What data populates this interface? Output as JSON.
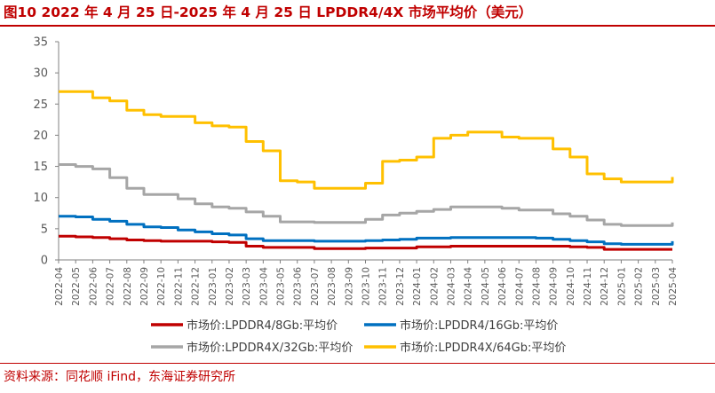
{
  "title": "图10 2022 年 4 月 25 日-2025 年 4 月 25 日 LPDDR4/4X 市场平均价（美元）",
  "source": "资料来源：同花顺 iFind，东海证券研究所",
  "chart_data": {
    "type": "line",
    "title": "图10 2022 年 4 月 25 日-2025 年 4 月 25 日 LPDDR4/4X 市场平均价（美元）",
    "xlabel": "",
    "ylabel": "",
    "ylim": [
      0,
      35
    ],
    "yticks": [
      0,
      5,
      10,
      15,
      20,
      25,
      30,
      35
    ],
    "grid": false,
    "legend_position": "bottom",
    "categories": [
      "2022-04",
      "2022-05",
      "2022-06",
      "2022-07",
      "2022-08",
      "2022-09",
      "2022-10",
      "2022-11",
      "2022-12",
      "2023-01",
      "2023-02",
      "2023-03",
      "2023-04",
      "2023-05",
      "2023-06",
      "2023-07",
      "2023-08",
      "2023-09",
      "2023-10",
      "2023-11",
      "2023-12",
      "2024-01",
      "2024-02",
      "2024-03",
      "2024-04",
      "2024-05",
      "2024-06",
      "2024-07",
      "2024-08",
      "2024-09",
      "2024-10",
      "2024-11",
      "2024-12",
      "2025-01",
      "2025-02",
      "2025-03",
      "2025-04"
    ],
    "series": [
      {
        "name": "市场价:LPDDR4/8Gb:平均价",
        "color": "#c00000",
        "points": [
          [
            0,
            3.8
          ],
          [
            1,
            3.7
          ],
          [
            2,
            3.6
          ],
          [
            3,
            3.4
          ],
          [
            4,
            3.2
          ],
          [
            5,
            3.1
          ],
          [
            6,
            3.0
          ],
          [
            7,
            3.0
          ],
          [
            8,
            3.0
          ],
          [
            9,
            2.9
          ],
          [
            10,
            2.8
          ],
          [
            11,
            2.2
          ],
          [
            12,
            2.0
          ],
          [
            13,
            2.0
          ],
          [
            14,
            2.0
          ],
          [
            15,
            1.8
          ],
          [
            16,
            1.8
          ],
          [
            17,
            1.8
          ],
          [
            18,
            1.9
          ],
          [
            19,
            1.9
          ],
          [
            20,
            1.9
          ],
          [
            21,
            2.1
          ],
          [
            22,
            2.1
          ],
          [
            23,
            2.2
          ],
          [
            24,
            2.2
          ],
          [
            25,
            2.2
          ],
          [
            26,
            2.2
          ],
          [
            27,
            2.2
          ],
          [
            28,
            2.2
          ],
          [
            29,
            2.2
          ],
          [
            30,
            2.1
          ],
          [
            31,
            2.0
          ],
          [
            32,
            1.7
          ],
          [
            33,
            1.7
          ],
          [
            34,
            1.7
          ],
          [
            35,
            1.7
          ],
          [
            36,
            1.7
          ]
        ]
      },
      {
        "name": "市场价:LPDDR4/16Gb:平均价",
        "color": "#0070c0",
        "points": [
          [
            0,
            7.0
          ],
          [
            1,
            6.9
          ],
          [
            2,
            6.5
          ],
          [
            3,
            6.2
          ],
          [
            4,
            5.7
          ],
          [
            5,
            5.3
          ],
          [
            6,
            5.2
          ],
          [
            7,
            4.8
          ],
          [
            8,
            4.5
          ],
          [
            9,
            4.2
          ],
          [
            10,
            4.0
          ],
          [
            11,
            3.4
          ],
          [
            12,
            3.1
          ],
          [
            13,
            3.1
          ],
          [
            14,
            3.1
          ],
          [
            15,
            3.0
          ],
          [
            16,
            3.0
          ],
          [
            17,
            3.0
          ],
          [
            18,
            3.1
          ],
          [
            19,
            3.2
          ],
          [
            20,
            3.3
          ],
          [
            21,
            3.5
          ],
          [
            22,
            3.5
          ],
          [
            23,
            3.6
          ],
          [
            24,
            3.6
          ],
          [
            25,
            3.6
          ],
          [
            26,
            3.6
          ],
          [
            27,
            3.6
          ],
          [
            28,
            3.5
          ],
          [
            29,
            3.3
          ],
          [
            30,
            3.1
          ],
          [
            31,
            2.9
          ],
          [
            32,
            2.6
          ],
          [
            33,
            2.5
          ],
          [
            34,
            2.5
          ],
          [
            35,
            2.5
          ],
          [
            36,
            3.0
          ]
        ]
      },
      {
        "name": "市场价:LPDDR4X/32Gb:平均价",
        "color": "#a6a6a6",
        "points": [
          [
            0,
            15.3
          ],
          [
            1,
            15.0
          ],
          [
            2,
            14.6
          ],
          [
            3,
            13.2
          ],
          [
            4,
            11.5
          ],
          [
            5,
            10.5
          ],
          [
            6,
            10.5
          ],
          [
            7,
            9.8
          ],
          [
            8,
            9.0
          ],
          [
            9,
            8.5
          ],
          [
            10,
            8.3
          ],
          [
            11,
            7.7
          ],
          [
            12,
            7.0
          ],
          [
            13,
            6.1
          ],
          [
            14,
            6.1
          ],
          [
            15,
            6.0
          ],
          [
            16,
            6.0
          ],
          [
            17,
            6.0
          ],
          [
            18,
            6.5
          ],
          [
            19,
            7.2
          ],
          [
            20,
            7.5
          ],
          [
            21,
            7.8
          ],
          [
            22,
            8.1
          ],
          [
            23,
            8.5
          ],
          [
            24,
            8.5
          ],
          [
            25,
            8.5
          ],
          [
            26,
            8.3
          ],
          [
            27,
            8.0
          ],
          [
            28,
            8.0
          ],
          [
            29,
            7.4
          ],
          [
            30,
            7.0
          ],
          [
            31,
            6.4
          ],
          [
            32,
            5.7
          ],
          [
            33,
            5.5
          ],
          [
            34,
            5.5
          ],
          [
            35,
            5.5
          ],
          [
            36,
            6.0
          ]
        ]
      },
      {
        "name": "市场价:LPDDR4X/64Gb:平均价",
        "color": "#ffc000",
        "points": [
          [
            0,
            27.0
          ],
          [
            1,
            27.0
          ],
          [
            2,
            26.0
          ],
          [
            3,
            25.5
          ],
          [
            4,
            24.0
          ],
          [
            5,
            23.3
          ],
          [
            6,
            23.0
          ],
          [
            7,
            23.0
          ],
          [
            8,
            22.0
          ],
          [
            9,
            21.5
          ],
          [
            10,
            21.3
          ],
          [
            11,
            19.0
          ],
          [
            12,
            17.5
          ],
          [
            13,
            12.7
          ],
          [
            14,
            12.5
          ],
          [
            15,
            11.5
          ],
          [
            16,
            11.5
          ],
          [
            17,
            11.5
          ],
          [
            18,
            12.3
          ],
          [
            19,
            15.8
          ],
          [
            20,
            16.0
          ],
          [
            21,
            16.5
          ],
          [
            22,
            19.5
          ],
          [
            23,
            20.0
          ],
          [
            24,
            20.5
          ],
          [
            25,
            20.5
          ],
          [
            26,
            19.7
          ],
          [
            27,
            19.5
          ],
          [
            28,
            19.5
          ],
          [
            29,
            17.8
          ],
          [
            30,
            16.5
          ],
          [
            31,
            13.8
          ],
          [
            32,
            13.0
          ],
          [
            33,
            12.5
          ],
          [
            34,
            12.5
          ],
          [
            35,
            12.5
          ],
          [
            36,
            13.3
          ]
        ]
      }
    ]
  }
}
